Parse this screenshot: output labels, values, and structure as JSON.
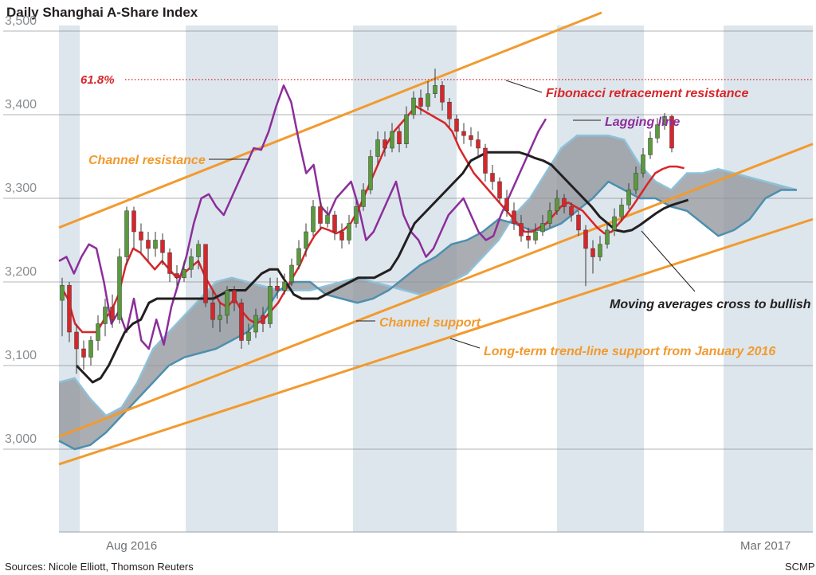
{
  "chart_data": {
    "type": "candlestick",
    "title": "Daily Shanghai A-Share Index",
    "source": "Sources: Nicole Elliott, Thomson Reuters",
    "credit": "SCMP",
    "x_labels": [
      "Aug 2016",
      "Mar 2017"
    ],
    "ylim": [
      2970,
      3525
    ],
    "yticks": [
      3000,
      3100,
      3200,
      3300,
      3400,
      3500
    ],
    "ytick_labels": [
      "3,000",
      "3,100",
      "3,200",
      "3,300",
      "3,400",
      "3,500"
    ],
    "grid": true,
    "annotations": {
      "fibonacci_level": "61.8%",
      "fibonacci": "Fibonacci retracement resistance",
      "lagging": "Lagging line",
      "channel_resistance": "Channel resistance",
      "channel_support": "Channel support",
      "ma_cross": "Moving averages cross to bullish",
      "trend_support": "Long-term trend-line support from January 2016"
    },
    "fibonacci_value": 3442,
    "colors": {
      "up": "#5a9a3c",
      "down": "#d7262b",
      "red_ma": "#d7262b",
      "black_ma": "#231f20",
      "lagging": "#8c2e9b",
      "channel": "#f29a2e",
      "cloud_fill": "#8e9398",
      "cloud_edge": "#4d8fae",
      "band": "#dde6ec",
      "grid": "#6d6f71"
    },
    "candles": [
      [
        3178,
        3196,
        3205,
        3135
      ],
      [
        3196,
        3140,
        3200,
        3128
      ],
      [
        3140,
        3120,
        3150,
        3090
      ],
      [
        3120,
        3110,
        3130,
        3095
      ],
      [
        3110,
        3130,
        3135,
        3100
      ],
      [
        3130,
        3150,
        3160,
        3118
      ],
      [
        3150,
        3170,
        3180,
        3135
      ],
      [
        3170,
        3155,
        3185,
        3145
      ],
      [
        3155,
        3230,
        3240,
        3150
      ],
      [
        3230,
        3285,
        3290,
        3220
      ],
      [
        3285,
        3260,
        3290,
        3240
      ],
      [
        3260,
        3250,
        3270,
        3235
      ],
      [
        3250,
        3240,
        3260,
        3225
      ],
      [
        3240,
        3250,
        3260,
        3230
      ],
      [
        3250,
        3235,
        3258,
        3220
      ],
      [
        3235,
        3210,
        3240,
        3200
      ],
      [
        3210,
        3205,
        3220,
        3195
      ],
      [
        3205,
        3215,
        3225,
        3200
      ],
      [
        3215,
        3230,
        3240,
        3205
      ],
      [
        3230,
        3245,
        3250,
        3215
      ],
      [
        3245,
        3175,
        3245,
        3170
      ],
      [
        3175,
        3155,
        3190,
        3145
      ],
      [
        3155,
        3160,
        3175,
        3140
      ],
      [
        3160,
        3190,
        3195,
        3150
      ],
      [
        3190,
        3175,
        3195,
        3165
      ],
      [
        3175,
        3130,
        3180,
        3120
      ],
      [
        3130,
        3140,
        3150,
        3125
      ],
      [
        3140,
        3160,
        3168,
        3133
      ],
      [
        3160,
        3150,
        3170,
        3140
      ],
      [
        3150,
        3195,
        3205,
        3145
      ],
      [
        3195,
        3190,
        3205,
        3180
      ],
      [
        3190,
        3200,
        3210,
        3185
      ],
      [
        3200,
        3220,
        3228,
        3195
      ],
      [
        3220,
        3240,
        3250,
        3215
      ],
      [
        3240,
        3260,
        3270,
        3230
      ],
      [
        3260,
        3290,
        3298,
        3255
      ],
      [
        3290,
        3270,
        3295,
        3262
      ],
      [
        3270,
        3280,
        3290,
        3265
      ],
      [
        3280,
        3260,
        3285,
        3250
      ],
      [
        3260,
        3250,
        3270,
        3240
      ],
      [
        3250,
        3270,
        3280,
        3245
      ],
      [
        3270,
        3290,
        3298,
        3265
      ],
      [
        3290,
        3310,
        3318,
        3285
      ],
      [
        3310,
        3350,
        3358,
        3305
      ],
      [
        3350,
        3370,
        3380,
        3340
      ],
      [
        3370,
        3360,
        3380,
        3350
      ],
      [
        3360,
        3380,
        3390,
        3355
      ],
      [
        3380,
        3365,
        3385,
        3355
      ],
      [
        3365,
        3400,
        3410,
        3360
      ],
      [
        3400,
        3420,
        3428,
        3395
      ],
      [
        3420,
        3410,
        3430,
        3400
      ],
      [
        3410,
        3425,
        3440,
        3405
      ],
      [
        3425,
        3435,
        3455,
        3420
      ],
      [
        3435,
        3415,
        3440,
        3405
      ],
      [
        3415,
        3395,
        3420,
        3385
      ],
      [
        3395,
        3380,
        3400,
        3370
      ],
      [
        3380,
        3375,
        3390,
        3365
      ],
      [
        3375,
        3370,
        3385,
        3362
      ],
      [
        3370,
        3360,
        3380,
        3350
      ],
      [
        3360,
        3330,
        3365,
        3320
      ],
      [
        3330,
        3320,
        3340,
        3310
      ],
      [
        3320,
        3300,
        3325,
        3295
      ],
      [
        3300,
        3285,
        3310,
        3278
      ],
      [
        3285,
        3270,
        3295,
        3262
      ],
      [
        3270,
        3255,
        3280,
        3248
      ],
      [
        3255,
        3250,
        3265,
        3240
      ],
      [
        3250,
        3260,
        3270,
        3245
      ],
      [
        3260,
        3270,
        3280,
        3255
      ],
      [
        3270,
        3285,
        3295,
        3265
      ],
      [
        3285,
        3300,
        3310,
        3280
      ],
      [
        3300,
        3290,
        3305,
        3282
      ],
      [
        3290,
        3280,
        3295,
        3272
      ],
      [
        3280,
        3262,
        3285,
        3255
      ],
      [
        3262,
        3240,
        3268,
        3195
      ],
      [
        3240,
        3230,
        3250,
        3210
      ],
      [
        3230,
        3245,
        3255,
        3225
      ],
      [
        3245,
        3262,
        3272,
        3240
      ],
      [
        3262,
        3278,
        3288,
        3255
      ],
      [
        3278,
        3292,
        3300,
        3272
      ],
      [
        3292,
        3310,
        3318,
        3287
      ],
      [
        3310,
        3330,
        3338,
        3305
      ],
      [
        3330,
        3352,
        3360,
        3325
      ],
      [
        3352,
        3372,
        3380,
        3347
      ],
      [
        3372,
        3388,
        3396,
        3366
      ],
      [
        3388,
        3398,
        3402,
        3382
      ],
      [
        3398,
        3360,
        3400,
        3355
      ]
    ],
    "red_ma": [
      3195,
      3180,
      3150,
      3140,
      3140,
      3140,
      3155,
      3165,
      3185,
      3220,
      3240,
      3235,
      3225,
      3215,
      3225,
      3215,
      3205,
      3210,
      3218,
      3225,
      3205,
      3190,
      3175,
      3170,
      3180,
      3165,
      3155,
      3150,
      3155,
      3165,
      3175,
      3190,
      3205,
      3220,
      3240,
      3255,
      3265,
      3262,
      3258,
      3262,
      3270,
      3285,
      3305,
      3325,
      3345,
      3365,
      3380,
      3390,
      3400,
      3410,
      3405,
      3400,
      3395,
      3390,
      3380,
      3360,
      3345,
      3330,
      3320,
      3310,
      3300,
      3290,
      3280,
      3270,
      3260,
      3260,
      3265,
      3270,
      3280,
      3290,
      3295,
      3290,
      3285,
      3275,
      3265,
      3258,
      3260,
      3270,
      3280,
      3292,
      3305,
      3318,
      3330,
      3335,
      3338,
      3338,
      3336
    ],
    "black_ma": [
      3100,
      3090,
      3080,
      3085,
      3100,
      3120,
      3140,
      3150,
      3155,
      3175,
      3180,
      3180,
      3180,
      3180,
      3180,
      3180,
      3180,
      3180,
      3185,
      3190,
      3190,
      3190,
      3200,
      3210,
      3215,
      3215,
      3200,
      3185,
      3180,
      3180,
      3180,
      3185,
      3190,
      3195,
      3200,
      3205,
      3205,
      3205,
      3210,
      3215,
      3230,
      3250,
      3270,
      3280,
      3290,
      3300,
      3310,
      3320,
      3330,
      3345,
      3350,
      3355,
      3355,
      3355,
      3355,
      3355,
      3352,
      3348,
      3345,
      3340,
      3330,
      3320,
      3310,
      3300,
      3290,
      3278,
      3270,
      3262,
      3260,
      3262,
      3268,
      3275,
      3282,
      3288,
      3292,
      3295,
      3298
    ],
    "lagging": [
      3225,
      3230,
      3210,
      3230,
      3245,
      3240,
      3200,
      3150,
      3165,
      3140,
      3180,
      3130,
      3120,
      3155,
      3125,
      3170,
      3200,
      3230,
      3270,
      3300,
      3305,
      3290,
      3280,
      3300,
      3320,
      3340,
      3360,
      3358,
      3380,
      3410,
      3435,
      3415,
      3370,
      3330,
      3340,
      3290,
      3280,
      3300,
      3310,
      3320,
      3290,
      3250,
      3260,
      3280,
      3300,
      3320,
      3280,
      3260,
      3250,
      3230,
      3240,
      3260,
      3280,
      3290,
      3300,
      3280,
      3260,
      3250,
      3255,
      3280,
      3300,
      3320,
      3340,
      3360,
      3380,
      3395
    ],
    "cloud_upper": [
      3080,
      3085,
      3060,
      3040,
      3050,
      3080,
      3120,
      3140,
      3160,
      3180,
      3200,
      3205,
      3200,
      3195,
      3190,
      3190,
      3190,
      3195,
      3200,
      3205,
      3200,
      3195,
      3190,
      3185,
      3190,
      3200,
      3210,
      3230,
      3250,
      3280,
      3300,
      3330,
      3360,
      3375,
      3375,
      3375,
      3370,
      3340,
      3320,
      3310,
      3330,
      3330,
      3335,
      3330,
      3325,
      3320,
      3315,
      3310
    ],
    "cloud_lower": [
      3010,
      3000,
      3005,
      3020,
      3040,
      3060,
      3080,
      3100,
      3110,
      3115,
      3120,
      3130,
      3140,
      3160,
      3190,
      3200,
      3200,
      3185,
      3180,
      3175,
      3180,
      3190,
      3205,
      3220,
      3230,
      3245,
      3250,
      3260,
      3275,
      3270,
      3262,
      3262,
      3270,
      3285,
      3300,
      3320,
      3310,
      3300,
      3300,
      3290,
      3285,
      3270,
      3255,
      3262,
      3275,
      3300,
      3310,
      3310
    ]
  }
}
